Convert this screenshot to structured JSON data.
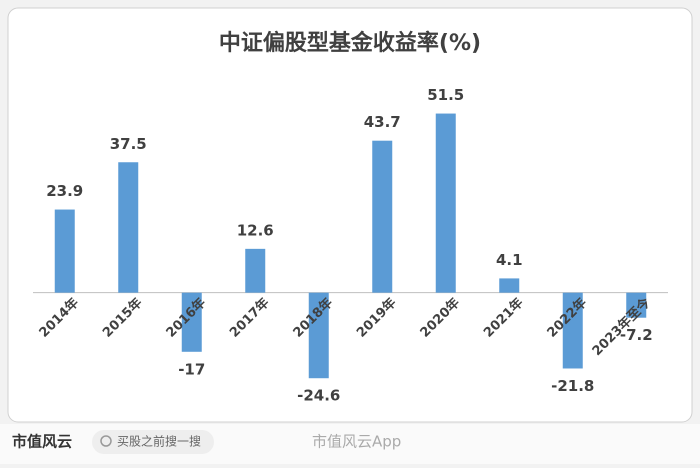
{
  "chart_data": {
    "type": "bar",
    "title": "中证偏股型基金收益率(%)",
    "categories": [
      "2014年",
      "2015年",
      "2016年",
      "2017年",
      "2018年",
      "2019年",
      "2020年",
      "2021年",
      "2022年",
      "2023年至今"
    ],
    "values": [
      23.9,
      37.5,
      -17,
      12.6,
      -24.6,
      43.7,
      51.5,
      4.1,
      -21.8,
      -7.2
    ],
    "color": "#5b9bd5",
    "ylim": [
      -30,
      60
    ]
  },
  "footer": {
    "logo": "市值风云",
    "search": "买股之前搜一搜",
    "app": "市值风云App"
  }
}
